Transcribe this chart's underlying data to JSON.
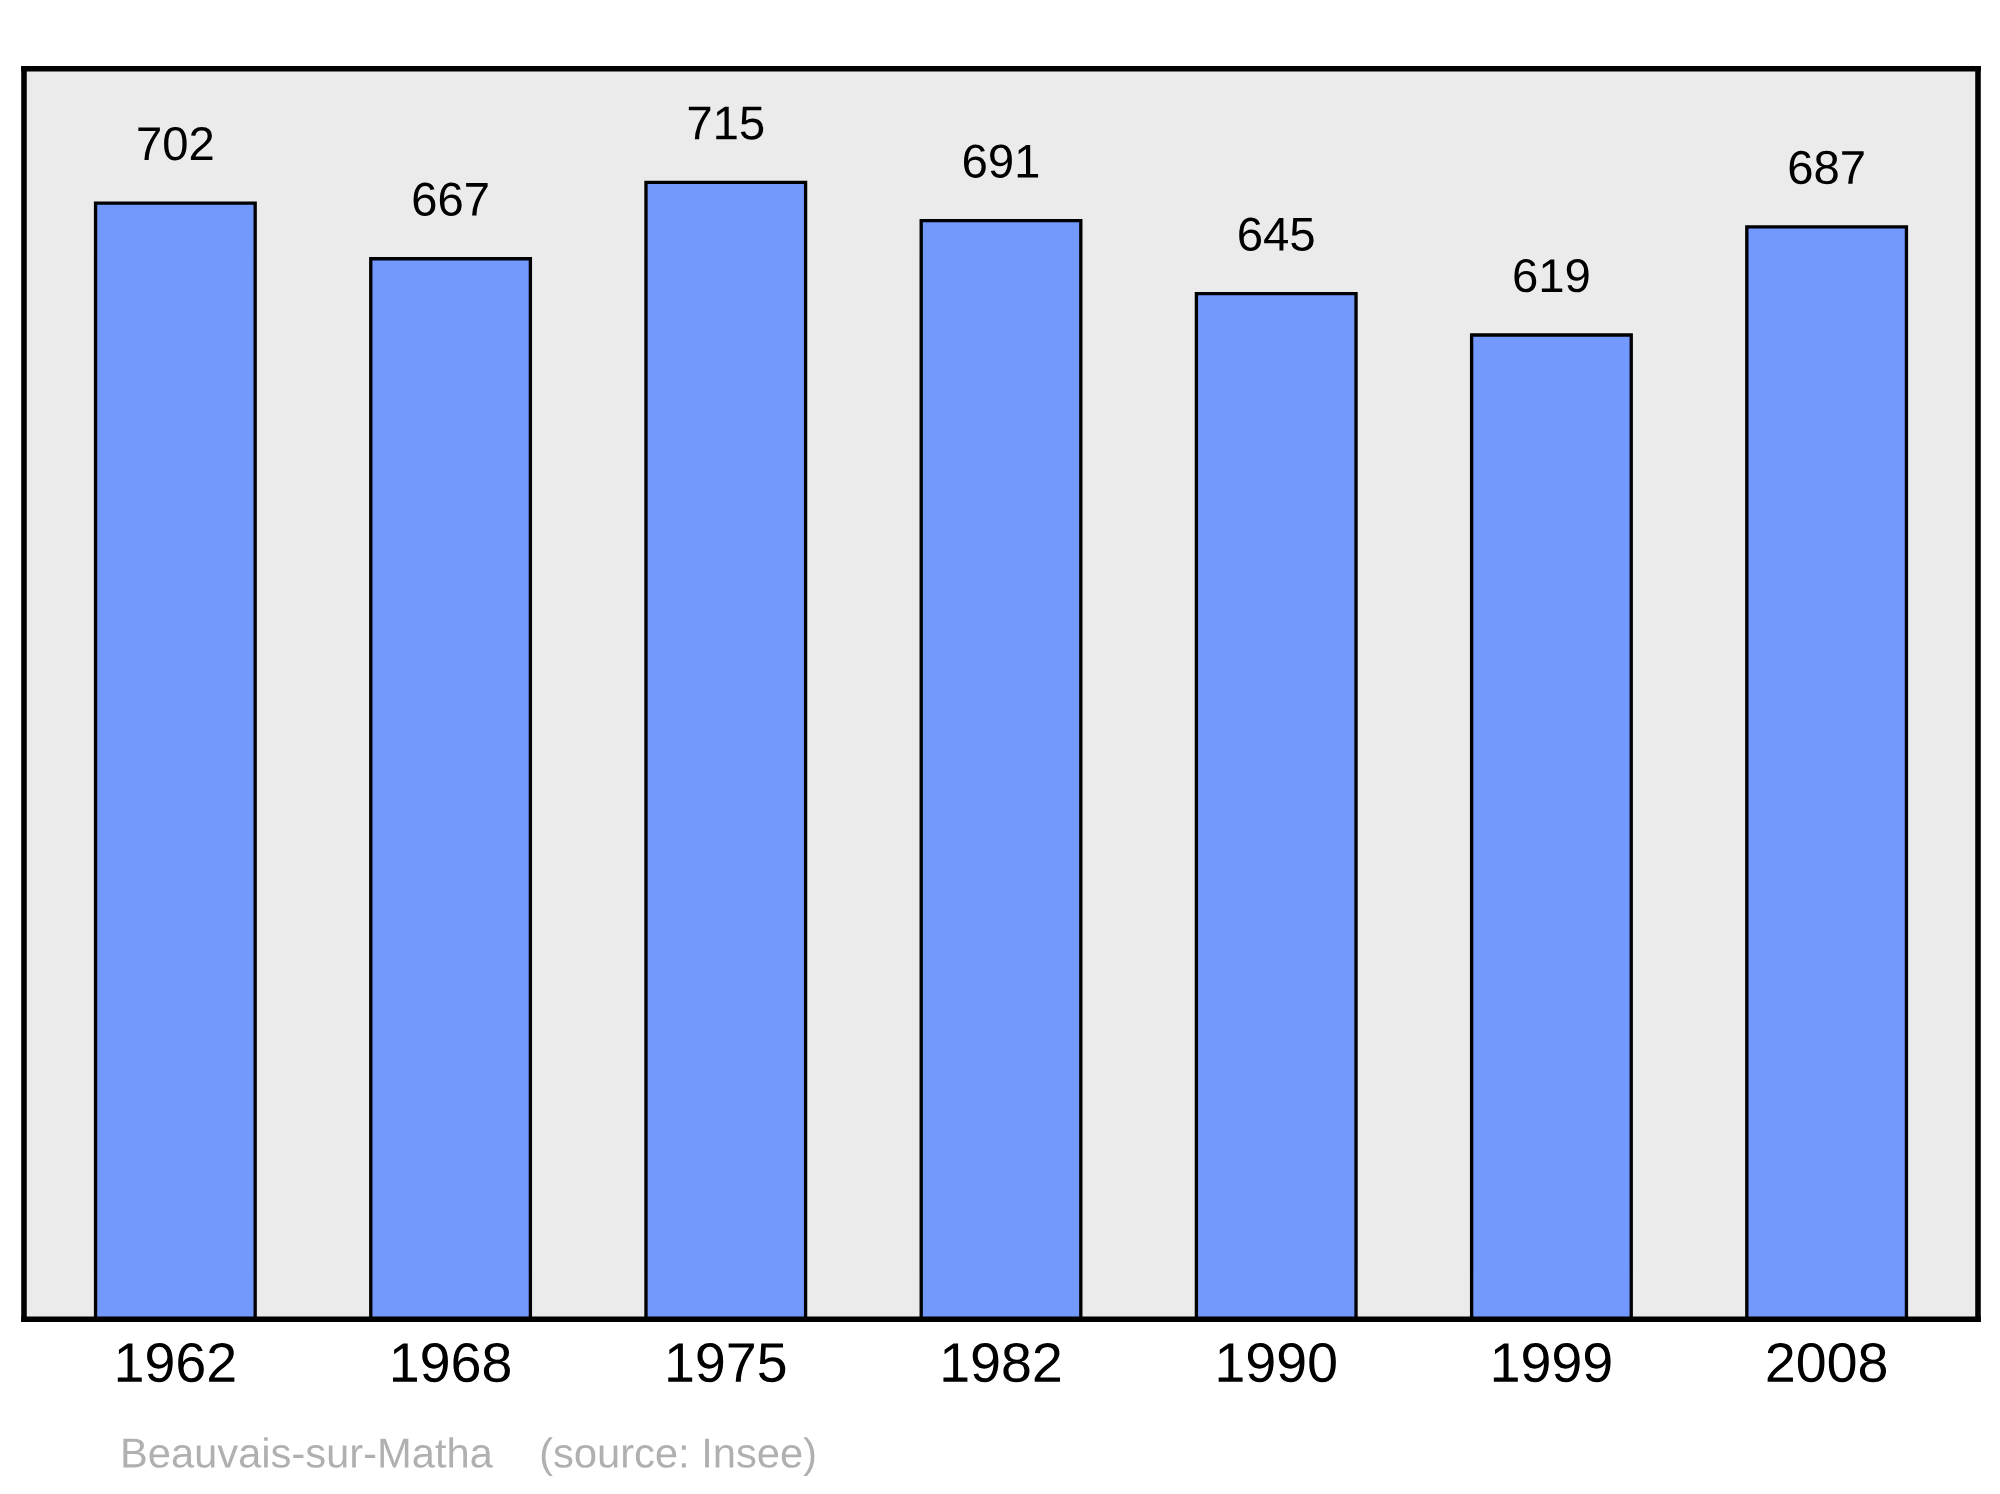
{
  "chart_data": {
    "type": "bar",
    "categories": [
      "1962",
      "1968",
      "1975",
      "1982",
      "1990",
      "1999",
      "2008"
    ],
    "values": [
      702,
      667,
      715,
      691,
      645,
      619,
      687
    ],
    "color": "#7399ff",
    "data_labels": true,
    "tick_labels": "x",
    "grid": false,
    "legend": false,
    "annotations": [
      "Beauvais-sur-Matha    (source: Insee)"
    ]
  }
}
